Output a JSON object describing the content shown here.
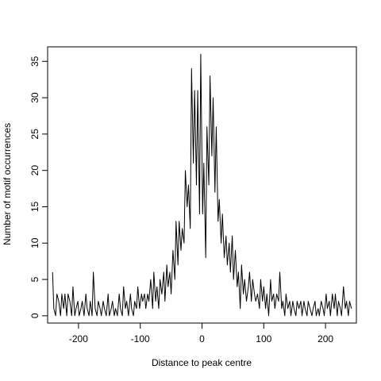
{
  "chart_data": {
    "type": "line",
    "title": "",
    "xlabel": "Distance to peak centre",
    "ylabel": "Number of motif occurrences",
    "xlim": [
      -250,
      250
    ],
    "ylim": [
      -1,
      37
    ],
    "xticks": [
      -200,
      -100,
      0,
      100,
      200
    ],
    "xtick_labels": [
      "-200",
      "-100",
      "0",
      "100",
      "200"
    ],
    "yticks": [
      0,
      5,
      10,
      15,
      20,
      25,
      30,
      35
    ],
    "ytick_labels": [
      "0",
      "5",
      "10",
      "15",
      "20",
      "25",
      "30",
      "35"
    ],
    "grid": false,
    "legend": "none",
    "line_color": "#000000",
    "series": [
      {
        "points": [
          [
            -242,
            6
          ],
          [
            -240,
            1
          ],
          [
            -237,
            0
          ],
          [
            -235,
            3
          ],
          [
            -232,
            2
          ],
          [
            -229,
            0
          ],
          [
            -227,
            3
          ],
          [
            -224,
            1
          ],
          [
            -222,
            3
          ],
          [
            -219,
            0
          ],
          [
            -217,
            3
          ],
          [
            -214,
            2
          ],
          [
            -211,
            0
          ],
          [
            -209,
            4
          ],
          [
            -206,
            0
          ],
          [
            -204,
            1
          ],
          [
            -201,
            2
          ],
          [
            -199,
            0
          ],
          [
            -196,
            1
          ],
          [
            -194,
            2
          ],
          [
            -191,
            0
          ],
          [
            -188,
            3
          ],
          [
            -186,
            1
          ],
          [
            -183,
            0
          ],
          [
            -181,
            2
          ],
          [
            -178,
            0
          ],
          [
            -176,
            6
          ],
          [
            -173,
            1
          ],
          [
            -170,
            0
          ],
          [
            -168,
            2
          ],
          [
            -165,
            1
          ],
          [
            -163,
            0
          ],
          [
            -160,
            2
          ],
          [
            -158,
            1
          ],
          [
            -155,
            0
          ],
          [
            -152,
            3
          ],
          [
            -150,
            0
          ],
          [
            -147,
            1
          ],
          [
            -145,
            2
          ],
          [
            -142,
            0
          ],
          [
            -140,
            1
          ],
          [
            -137,
            0
          ],
          [
            -134,
            3
          ],
          [
            -132,
            1
          ],
          [
            -129,
            0
          ],
          [
            -127,
            4
          ],
          [
            -124,
            1
          ],
          [
            -122,
            2
          ],
          [
            -119,
            0
          ],
          [
            -116,
            3
          ],
          [
            -114,
            1
          ],
          [
            -111,
            0
          ],
          [
            -109,
            2
          ],
          [
            -106,
            1
          ],
          [
            -104,
            4
          ],
          [
            -101,
            1
          ],
          [
            -98,
            3
          ],
          [
            -96,
            2
          ],
          [
            -93,
            3
          ],
          [
            -91,
            1
          ],
          [
            -88,
            3
          ],
          [
            -86,
            2
          ],
          [
            -83,
            5
          ],
          [
            -80,
            1
          ],
          [
            -78,
            6
          ],
          [
            -75,
            2
          ],
          [
            -73,
            4
          ],
          [
            -70,
            1
          ],
          [
            -68,
            5
          ],
          [
            -65,
            3
          ],
          [
            -62,
            6
          ],
          [
            -60,
            2
          ],
          [
            -57,
            7
          ],
          [
            -55,
            4
          ],
          [
            -52,
            6
          ],
          [
            -50,
            3
          ],
          [
            -47,
            9
          ],
          [
            -44,
            5
          ],
          [
            -42,
            13
          ],
          [
            -39,
            7
          ],
          [
            -37,
            13
          ],
          [
            -34,
            9
          ],
          [
            -32,
            12
          ],
          [
            -29,
            10
          ],
          [
            -27,
            20
          ],
          [
            -24,
            15
          ],
          [
            -22,
            18
          ],
          [
            -19,
            12
          ],
          [
            -17,
            34
          ],
          [
            -14,
            21
          ],
          [
            -12,
            31
          ],
          [
            -9,
            18
          ],
          [
            -7,
            31
          ],
          [
            -4,
            14
          ],
          [
            -2,
            36
          ],
          [
            1,
            14
          ],
          [
            3,
            21
          ],
          [
            6,
            8
          ],
          [
            8,
            26
          ],
          [
            11,
            18
          ],
          [
            13,
            33
          ],
          [
            16,
            22
          ],
          [
            18,
            30
          ],
          [
            21,
            17
          ],
          [
            23,
            26
          ],
          [
            26,
            13
          ],
          [
            28,
            16
          ],
          [
            31,
            10
          ],
          [
            33,
            14
          ],
          [
            36,
            8
          ],
          [
            39,
            11
          ],
          [
            41,
            7
          ],
          [
            44,
            10
          ],
          [
            46,
            6
          ],
          [
            49,
            11
          ],
          [
            51,
            5
          ],
          [
            54,
            9
          ],
          [
            57,
            4
          ],
          [
            59,
            6
          ],
          [
            62,
            1
          ],
          [
            64,
            7
          ],
          [
            67,
            3
          ],
          [
            69,
            5
          ],
          [
            72,
            2
          ],
          [
            75,
            4
          ],
          [
            77,
            6
          ],
          [
            80,
            2
          ],
          [
            82,
            5
          ],
          [
            85,
            3
          ],
          [
            87,
            2
          ],
          [
            90,
            3
          ],
          [
            93,
            1
          ],
          [
            95,
            5
          ],
          [
            98,
            2
          ],
          [
            100,
            4
          ],
          [
            103,
            1
          ],
          [
            105,
            3
          ],
          [
            108,
            0
          ],
          [
            111,
            5
          ],
          [
            113,
            2
          ],
          [
            116,
            3
          ],
          [
            118,
            1
          ],
          [
            121,
            3
          ],
          [
            124,
            2
          ],
          [
            126,
            6
          ],
          [
            129,
            1
          ],
          [
            131,
            2
          ],
          [
            134,
            0
          ],
          [
            136,
            3
          ],
          [
            139,
            1
          ],
          [
            142,
            2
          ],
          [
            144,
            0
          ],
          [
            147,
            2
          ],
          [
            149,
            1
          ],
          [
            152,
            0
          ],
          [
            154,
            2
          ],
          [
            157,
            1
          ],
          [
            160,
            2
          ],
          [
            162,
            0
          ],
          [
            165,
            2
          ],
          [
            167,
            1
          ],
          [
            170,
            0
          ],
          [
            172,
            2
          ],
          [
            175,
            1
          ],
          [
            178,
            0
          ],
          [
            180,
            1
          ],
          [
            183,
            2
          ],
          [
            185,
            0
          ],
          [
            188,
            1
          ],
          [
            190,
            0
          ],
          [
            193,
            2
          ],
          [
            196,
            1
          ],
          [
            198,
            0
          ],
          [
            201,
            3
          ],
          [
            203,
            1
          ],
          [
            206,
            2
          ],
          [
            208,
            0
          ],
          [
            211,
            3
          ],
          [
            214,
            1
          ],
          [
            216,
            3
          ],
          [
            219,
            0
          ],
          [
            221,
            2
          ],
          [
            224,
            1
          ],
          [
            226,
            0
          ],
          [
            229,
            4
          ],
          [
            232,
            1
          ],
          [
            234,
            2
          ],
          [
            237,
            0
          ],
          [
            239,
            2
          ],
          [
            242,
            1
          ]
        ]
      }
    ]
  }
}
